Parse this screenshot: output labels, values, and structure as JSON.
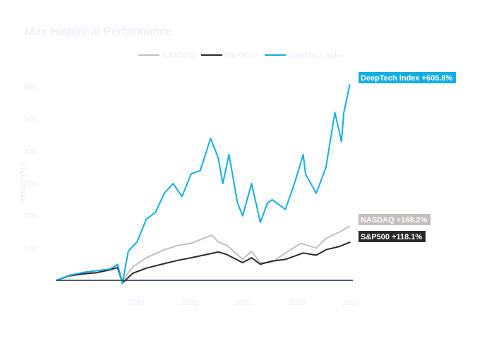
{
  "chart_data": {
    "type": "line",
    "title": "Max Historical Performance",
    "xlabel": "",
    "ylabel": "Return (%)",
    "xlim": [
      "2019-01-01",
      "2024-07-01"
    ],
    "ylim": [
      -50,
      650
    ],
    "x_ticks": [
      "2020",
      "2021",
      "2022",
      "2023",
      "2024"
    ],
    "y_ticks": [
      100,
      200,
      300,
      400,
      500,
      600
    ],
    "grid": false,
    "zero_line": true,
    "legend": {
      "placement": "top-center",
      "orientation": "horizontal"
    },
    "series": [
      {
        "name": "NASDAQ",
        "color": "#c4bebe",
        "end_label": "NASDAQ +168.2%",
        "x": [
          "2019-01-01",
          "2019-04-01",
          "2019-07-01",
          "2019-10-01",
          "2020-01-01",
          "2020-02-19",
          "2020-03-23",
          "2020-06-01",
          "2020-09-01",
          "2021-01-01",
          "2021-04-01",
          "2021-07-01",
          "2021-11-19",
          "2022-01-01",
          "2022-03-01",
          "2022-06-15",
          "2022-08-15",
          "2022-10-13",
          "2022-12-28",
          "2023-04-01",
          "2023-07-15",
          "2023-10-27",
          "2024-01-01",
          "2024-04-01",
          "2024-06-10"
        ],
        "values": [
          0,
          18,
          22,
          24,
          37,
          47,
          -2,
          42,
          70,
          95,
          108,
          115,
          140,
          120,
          108,
          65,
          90,
          55,
          55,
          85,
          115,
          100,
          130,
          150,
          168.2
        ]
      },
      {
        "name": "S&P500",
        "color": "#2a2a2a",
        "end_label": "S&P500 +118.1%",
        "x": [
          "2019-01-01",
          "2019-04-01",
          "2019-07-01",
          "2019-10-01",
          "2020-01-01",
          "2020-02-19",
          "2020-03-23",
          "2020-06-01",
          "2020-09-01",
          "2021-01-01",
          "2021-04-01",
          "2021-07-01",
          "2022-01-03",
          "2022-03-01",
          "2022-06-15",
          "2022-08-15",
          "2022-10-13",
          "2023-01-01",
          "2023-04-01",
          "2023-07-31",
          "2023-10-27",
          "2024-01-01",
          "2024-04-01",
          "2024-06-10"
        ],
        "values": [
          0,
          14,
          20,
          24,
          33,
          40,
          -8,
          22,
          38,
          52,
          62,
          70,
          88,
          80,
          55,
          70,
          50,
          60,
          65,
          85,
          78,
          95,
          105,
          118.1
        ]
      },
      {
        "name": "DeepTech Index",
        "color": "#12ade3",
        "end_label": "DeepTech Index +605.8%",
        "x": [
          "2019-01-01",
          "2019-04-01",
          "2019-07-01",
          "2019-10-01",
          "2020-01-01",
          "2020-02-19",
          "2020-03-23",
          "2020-05-01",
          "2020-07-01",
          "2020-09-01",
          "2020-11-01",
          "2021-01-01",
          "2021-03-01",
          "2021-05-01",
          "2021-07-01",
          "2021-09-01",
          "2021-11-10",
          "2022-01-01",
          "2022-02-01",
          "2022-03-15",
          "2022-05-12",
          "2022-06-15",
          "2022-08-15",
          "2022-10-13",
          "2022-12-01",
          "2023-01-01",
          "2023-04-01",
          "2023-06-01",
          "2023-07-31",
          "2023-08-15",
          "2023-10-27",
          "2024-01-01",
          "2024-03-01",
          "2024-04-15",
          "2024-05-01",
          "2024-06-10"
        ],
        "values": [
          0,
          15,
          25,
          30,
          35,
          50,
          -10,
          90,
          120,
          190,
          210,
          270,
          300,
          260,
          330,
          340,
          440,
          380,
          300,
          390,
          240,
          200,
          300,
          180,
          240,
          250,
          220,
          300,
          390,
          330,
          270,
          350,
          520,
          430,
          520,
          605.8
        ]
      }
    ]
  }
}
